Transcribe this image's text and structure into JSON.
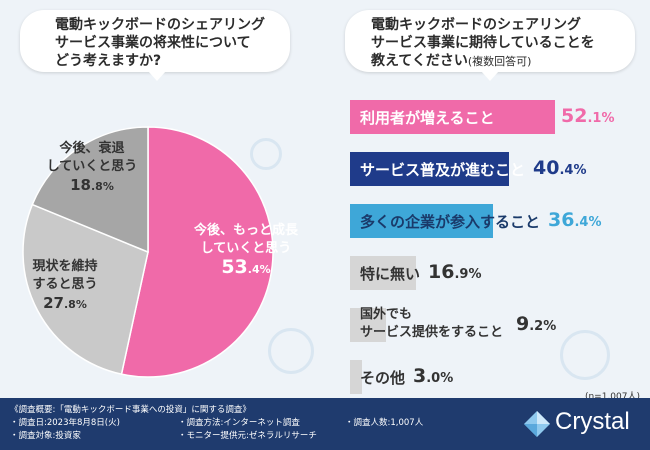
{
  "questions": {
    "left": "電動キックボードのシェアリングサービス事業の将来性についてどう考えますか?",
    "left_lines": [
      "電動キックボードのシェアリング",
      "サービス事業の将来性について",
      "どう考えますか?"
    ],
    "right_lines": [
      "電動キックボードのシェアリング",
      "サービス事業に期待していることを",
      "教えてください"
    ],
    "right_sub": "(複数回答可)"
  },
  "pie": {
    "slices": [
      {
        "label_lines": [
          "今後、もっと成長",
          "していくと思う"
        ],
        "value_int": "53",
        "value_dec": ".4",
        "value_unit": "%",
        "color": "#f06aa9",
        "text_color": "#ffffff"
      },
      {
        "label_lines": [
          "現状を維持",
          "すると思う"
        ],
        "value_int": "27",
        "value_dec": ".8",
        "value_unit": "%",
        "color": "#c9c9c9",
        "text_color": "#333333"
      },
      {
        "label_lines": [
          "今後、衰退",
          "していくと思う"
        ],
        "value_int": "18",
        "value_dec": ".8",
        "value_unit": "%",
        "color": "#a6a6a6",
        "text_color": "#333333"
      }
    ]
  },
  "bars": [
    {
      "label": "利用者が増えること",
      "value_int": "52",
      "value_dec": ".1",
      "unit": "%",
      "color": "#f06aa9",
      "value_color": "#f06aa9",
      "label_color": "#ffffff"
    },
    {
      "label": "サービス普及が進むこと",
      "value_int": "40",
      "value_dec": ".4",
      "unit": "%",
      "color": "#1f3b8a",
      "value_color": "#1f3b8a",
      "label_color": "#ffffff"
    },
    {
      "label": "多くの企業が参入すること",
      "value_int": "36",
      "value_dec": ".4",
      "unit": "%",
      "color": "#3ea7d8",
      "value_color": "#3ea7d8",
      "label_color": "#1a3a6a"
    },
    {
      "label": "特に無い",
      "value_int": "16",
      "value_dec": ".9",
      "unit": "%",
      "color": "#d6d6d6",
      "value_color": "#333333",
      "label_color": "#333333"
    },
    {
      "label_lines": [
        "国外でも",
        "サービス提供をすること"
      ],
      "value_int": "9",
      "value_dec": ".2",
      "unit": "%",
      "color": "#d6d6d6",
      "value_color": "#333333",
      "label_color": "#333333"
    },
    {
      "label": "その他",
      "value_int": "3",
      "value_dec": ".0",
      "unit": "%",
      "color": "#d6d6d6",
      "value_color": "#333333",
      "label_color": "#333333"
    }
  ],
  "n_note": "(n=1,007人)",
  "footer": {
    "title": "《調査概要:「電動キックボード事業への投資」に関する調査》",
    "items": [
      "・調査日:2023年8月8日(火)",
      "・調査対象:投資家",
      "・調査方法:インターネット調査",
      "・モニター提供元:ゼネラルリサーチ",
      "・調査人数:1,007人"
    ],
    "brand": "Crystal"
  },
  "chart_data": [
    {
      "type": "pie",
      "categories": [
        "今後、もっと成長していくと思う",
        "現状を維持すると思う",
        "今後、衰退していくと思う"
      ],
      "values": [
        53.4,
        27.8,
        18.8
      ],
      "unit": "%"
    },
    {
      "type": "bar",
      "categories": [
        "利用者が増えること",
        "サービス普及が進むこと",
        "多くの企業が参入すること",
        "特に無い",
        "国外でもサービス提供をすること",
        "その他"
      ],
      "values": [
        52.1,
        40.4,
        36.4,
        16.9,
        9.2,
        3.0
      ],
      "unit": "%",
      "n": "n=1,007人"
    }
  ]
}
